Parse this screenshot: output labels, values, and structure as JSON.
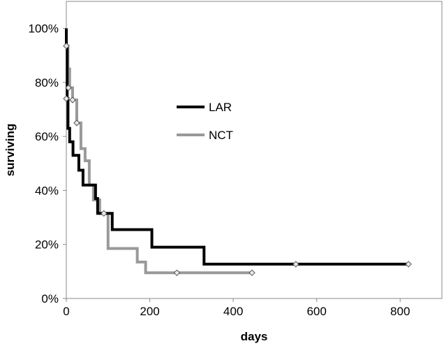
{
  "chart_data": {
    "type": "line",
    "step": true,
    "title": "",
    "xlabel": "days",
    "ylabel": "surviving",
    "xlim": [
      0,
      900
    ],
    "ylim": [
      0,
      1.1
    ],
    "xticks": [
      0,
      200,
      400,
      600,
      800
    ],
    "xtick_labels": [
      "0",
      "200",
      "400",
      "600",
      "800"
    ],
    "yticks": [
      0,
      0.2,
      0.4,
      0.6,
      0.8,
      1.0
    ],
    "ytick_labels": [
      "0%",
      "20%",
      "40%",
      "60%",
      "80%",
      "100%"
    ],
    "grid": false,
    "legend_position": "center",
    "series": [
      {
        "name": "LAR",
        "color": "#000000",
        "x": [
          0,
          0,
          2,
          4,
          8,
          16,
          30,
          40,
          70,
          75,
          90,
          110,
          205,
          330,
          550,
          820
        ],
        "y": [
          1.0,
          0.935,
          0.74,
          0.63,
          0.58,
          0.53,
          0.475,
          0.42,
          0.37,
          0.315,
          0.315,
          0.255,
          0.19,
          0.127,
          0.127,
          0.127
        ],
        "censored": [
          [
            0,
            0.935
          ],
          [
            0,
            0.74
          ],
          [
            550,
            0.127
          ],
          [
            820,
            0.127
          ]
        ]
      },
      {
        "name": "NCT",
        "color": "#999999",
        "x": [
          0,
          0,
          4,
          8,
          15,
          25,
          35,
          45,
          55,
          65,
          80,
          100,
          170,
          190,
          265,
          445
        ],
        "y": [
          1.0,
          0.935,
          0.85,
          0.78,
          0.735,
          0.65,
          0.555,
          0.51,
          0.42,
          0.365,
          0.315,
          0.185,
          0.135,
          0.095,
          0.095,
          0.095
        ],
        "censored": [
          [
            5,
            0.78
          ],
          [
            15,
            0.735
          ],
          [
            25,
            0.65
          ],
          [
            90,
            0.315
          ],
          [
            265,
            0.095
          ],
          [
            445,
            0.095
          ]
        ]
      }
    ]
  }
}
